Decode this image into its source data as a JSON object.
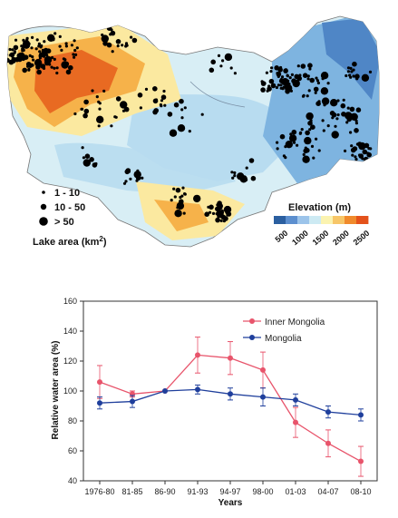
{
  "map": {
    "legend_area": {
      "title": "Lake area (km",
      "title_sup": "2",
      "title_close": ")",
      "items": [
        {
          "label": "1 - 10",
          "size": "small"
        },
        {
          "label": "10 - 50",
          "size": "medium"
        },
        {
          "label": "> 50",
          "size": "large"
        }
      ]
    },
    "legend_elevation": {
      "title": "Elevation (m)",
      "ticks": [
        "500",
        "1000",
        "1500",
        "2000",
        "2500"
      ],
      "colors": [
        "#2b5fa0",
        "#5c8fcf",
        "#9cc4ea",
        "#cdeaf3",
        "#fbf3b0",
        "#f7c668",
        "#f08a2c",
        "#e4521b"
      ]
    },
    "colors": {
      "lowland": "#7eb4e0",
      "plain": "#b8dcf0",
      "steppe": "#d8eef5",
      "highland": "#fbe9a0",
      "mountain": "#f6b24a",
      "peak": "#e86a22",
      "lake": "#000000"
    }
  },
  "chart_data": {
    "type": "line",
    "categories": [
      "1976-80",
      "81-85",
      "86-90",
      "91-93",
      "94-97",
      "98-00",
      "01-03",
      "04-07",
      "08-10"
    ],
    "series": [
      {
        "name": "Inner Mongolia",
        "color": "#e8546b",
        "values": [
          106,
          98,
          100,
          124,
          122,
          114,
          79,
          65,
          53
        ],
        "errors": [
          11,
          2,
          0,
          12,
          11,
          12,
          10,
          9,
          10
        ]
      },
      {
        "name": "Mongolia",
        "color": "#1f3f9c",
        "values": [
          92,
          93,
          100,
          101,
          98,
          96,
          94,
          86,
          84
        ],
        "errors": [
          4,
          4,
          0,
          3,
          4,
          6,
          4,
          4,
          4
        ]
      }
    ],
    "xlabel": "Years",
    "ylabel": "Relative water area (%)",
    "ylim": [
      40,
      160
    ],
    "yticks": [
      40,
      60,
      80,
      100,
      120,
      140,
      160
    ],
    "legend_position": "top-right",
    "grid": false
  }
}
